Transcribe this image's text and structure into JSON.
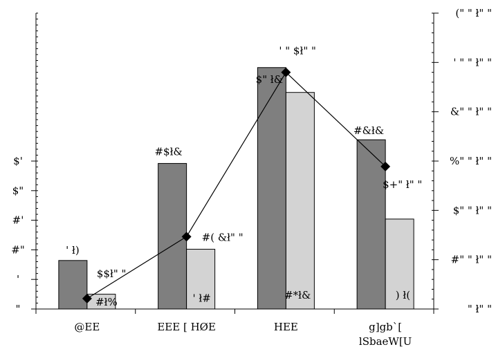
{
  "chart_data": {
    "type": "bar",
    "categories": [
      "@EE",
      "EEE [ HØE",
      "HEE",
      "g]gb`[\nlSbaeW[U"
    ],
    "series": [
      {
        "kind": "bar",
        "axis": "left",
        "color": "#7f7f7f",
        "values": [
          8.2,
          24.6,
          40.8,
          28.6
        ]
      },
      {
        "kind": "bar",
        "axis": "left",
        "color": "#d3d3d3",
        "values": [
          2.5,
          10.1,
          36.6,
          15.2
        ]
      },
      {
        "kind": "line",
        "axis": "right",
        "color": "#000000",
        "values": [
          21.2,
          146.7,
          480.0,
          289.0
        ]
      }
    ],
    "data_labels": {
      "bar_dark": [
        "' ł)",
        "#$ł&",
        "$\" ł&",
        "#&ł&"
      ],
      "bar_light": [
        "#ł%",
        "' ł#",
        "#*ł&",
        ") ł("
      ],
      "line": [
        "$$ł\" \"",
        "#( &ł\" \"",
        "' \" $ł\" \"",
        "$+\" ł\" \""
      ]
    },
    "yaxis_left": {
      "min": 0,
      "max": 50,
      "ticks": [
        0,
        5,
        10,
        15,
        20,
        25
      ],
      "tick_labels": [
        "\"",
        "'",
        "#\"",
        "#'",
        "$\"",
        "$'"
      ]
    },
    "yaxis_right": {
      "min": 0,
      "max": 600,
      "ticks": [
        0,
        100,
        200,
        300,
        400,
        500,
        600
      ],
      "tick_labels": [
        "\" ł\" \"",
        "#\" \" ł\" \"",
        "$\" \" ł\" \"",
        "%\" \" ł\" \"",
        "&\" \" ł\" \"",
        "' \" \" ł\" \"",
        "(\" \" ł\" \""
      ]
    },
    "grid": false,
    "legend": "none"
  }
}
